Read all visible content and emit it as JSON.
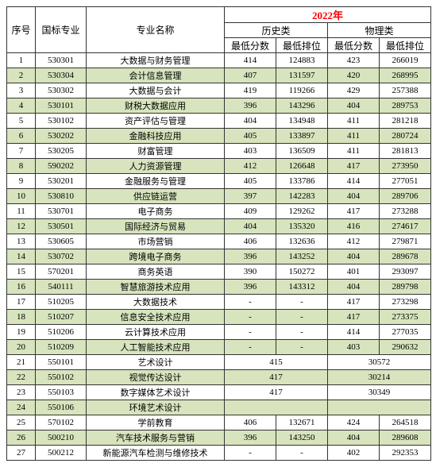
{
  "year_header": {
    "label": "2022年",
    "color": "#ff0000"
  },
  "head": {
    "seq": "序号",
    "code": "国标专业",
    "name": "专业名称",
    "hist": "历史类",
    "phys": "物理类",
    "minScore": "最低分数",
    "minRank": "最低排位"
  },
  "colors": {
    "even_row_bg": "#d7e4bd",
    "odd_row_bg": "#ffffff",
    "border": "#333333",
    "year_text": "#ff0000"
  },
  "rows": [
    {
      "seq": 1,
      "code": "530301",
      "name": "大数据与财务管理",
      "h_s": "414",
      "h_r": "124883",
      "p_s": "423",
      "p_r": "266019"
    },
    {
      "seq": 2,
      "code": "530304",
      "name": "会计信息管理",
      "h_s": "407",
      "h_r": "131597",
      "p_s": "420",
      "p_r": "268995"
    },
    {
      "seq": 3,
      "code": "530302",
      "name": "大数据与会计",
      "h_s": "419",
      "h_r": "119266",
      "p_s": "429",
      "p_r": "257388"
    },
    {
      "seq": 4,
      "code": "530101",
      "name": "财税大数据应用",
      "h_s": "396",
      "h_r": "143296",
      "p_s": "404",
      "p_r": "289753"
    },
    {
      "seq": 5,
      "code": "530102",
      "name": "资产评估与管理",
      "h_s": "404",
      "h_r": "134948",
      "p_s": "411",
      "p_r": "281218"
    },
    {
      "seq": 6,
      "code": "530202",
      "name": "金融科技应用",
      "h_s": "405",
      "h_r": "133897",
      "p_s": "411",
      "p_r": "280724"
    },
    {
      "seq": 7,
      "code": "530205",
      "name": "财富管理",
      "h_s": "403",
      "h_r": "136509",
      "p_s": "411",
      "p_r": "281813"
    },
    {
      "seq": 8,
      "code": "590202",
      "name": "人力资源管理",
      "h_s": "412",
      "h_r": "126648",
      "p_s": "417",
      "p_r": "273950"
    },
    {
      "seq": 9,
      "code": "530201",
      "name": "金融服务与管理",
      "h_s": "405",
      "h_r": "133786",
      "p_s": "414",
      "p_r": "277051"
    },
    {
      "seq": 10,
      "code": "530810",
      "name": "供应链运营",
      "h_s": "397",
      "h_r": "142283",
      "p_s": "404",
      "p_r": "289706"
    },
    {
      "seq": 11,
      "code": "530701",
      "name": "电子商务",
      "h_s": "409",
      "h_r": "129262",
      "p_s": "417",
      "p_r": "273288"
    },
    {
      "seq": 12,
      "code": "530501",
      "name": "国际经济与贸易",
      "h_s": "404",
      "h_r": "135320",
      "p_s": "416",
      "p_r": "274617"
    },
    {
      "seq": 13,
      "code": "530605",
      "name": "市场营销",
      "h_s": "406",
      "h_r": "132636",
      "p_s": "412",
      "p_r": "279871"
    },
    {
      "seq": 14,
      "code": "530702",
      "name": "跨境电子商务",
      "h_s": "396",
      "h_r": "143252",
      "p_s": "404",
      "p_r": "289678"
    },
    {
      "seq": 15,
      "code": "570201",
      "name": "商务英语",
      "h_s": "390",
      "h_r": "150272",
      "p_s": "401",
      "p_r": "293097"
    },
    {
      "seq": 16,
      "code": "540111",
      "name": "智慧旅游技术应用",
      "h_s": "396",
      "h_r": "143312",
      "p_s": "404",
      "p_r": "289798"
    },
    {
      "seq": 17,
      "code": "510205",
      "name": "大数据技术",
      "h_s": "-",
      "h_r": "-",
      "p_s": "417",
      "p_r": "273298"
    },
    {
      "seq": 18,
      "code": "510207",
      "name": "信息安全技术应用",
      "h_s": "-",
      "h_r": "-",
      "p_s": "417",
      "p_r": "273375"
    },
    {
      "seq": 19,
      "code": "510206",
      "name": "云计算技术应用",
      "h_s": "-",
      "h_r": "-",
      "p_s": "414",
      "p_r": "277035"
    },
    {
      "seq": 20,
      "code": "510209",
      "name": "人工智能技术应用",
      "h_s": "-",
      "h_r": "-",
      "p_s": "403",
      "p_r": "290632"
    },
    {
      "seq": 21,
      "code": "550101",
      "name": "艺术设计",
      "merge": true,
      "h_v": "415",
      "p_v": "30572"
    },
    {
      "seq": 22,
      "code": "550102",
      "name": "视觉传达设计",
      "merge": true,
      "h_v": "417",
      "p_v": "30214"
    },
    {
      "seq": 23,
      "code": "550103",
      "name": "数字媒体艺术设计",
      "merge": true,
      "h_v": "417",
      "p_v": "30349"
    },
    {
      "seq": 24,
      "code": "550106",
      "name": "环境艺术设计",
      "merge": true,
      "h_v": "",
      "p_v": ""
    },
    {
      "seq": 25,
      "code": "570102",
      "name": "学前教育",
      "h_s": "406",
      "h_r": "132671",
      "p_s": "424",
      "p_r": "264518"
    },
    {
      "seq": 26,
      "code": "500210",
      "name": "汽车技术服务与营销",
      "h_s": "396",
      "h_r": "143250",
      "p_s": "404",
      "p_r": "289608"
    },
    {
      "seq": 27,
      "code": "500212",
      "name": "新能源汽车检测与维修技术",
      "h_s": "-",
      "h_r": "-",
      "p_s": "402",
      "p_r": "292353"
    }
  ]
}
